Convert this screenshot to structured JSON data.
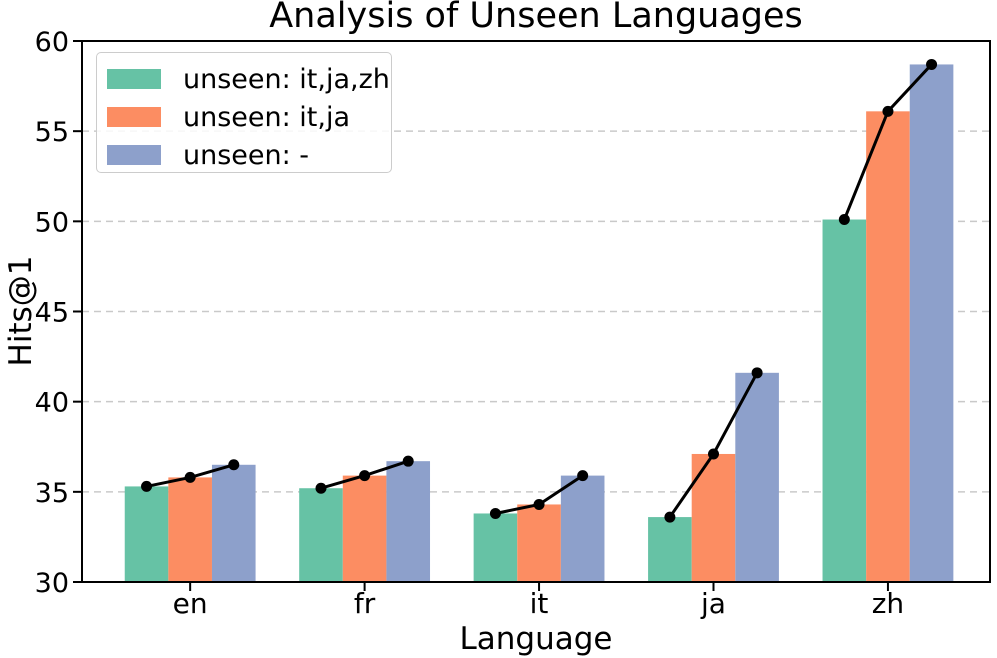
{
  "chart_data": {
    "type": "bar",
    "title": "Analysis of Unseen Languages",
    "xlabel": "Language",
    "ylabel": "Hits@1",
    "categories": [
      "en",
      "fr",
      "it",
      "ja",
      "zh"
    ],
    "series": [
      {
        "name": "unseen: it,ja,zh",
        "color": "#66c2a5",
        "values": [
          35.3,
          35.2,
          33.8,
          33.6,
          50.1
        ]
      },
      {
        "name": "unseen: it,ja",
        "color": "#fc8d62",
        "values": [
          35.8,
          35.9,
          34.3,
          37.1,
          56.1
        ]
      },
      {
        "name": "unseen: -",
        "color": "#8da0cb",
        "values": [
          36.5,
          36.7,
          35.9,
          41.6,
          58.7
        ]
      }
    ],
    "ylim": [
      30,
      60
    ],
    "yticks": [
      30,
      35,
      40,
      45,
      50,
      55,
      60
    ],
    "grid": true,
    "grid_color": "#c9c9c9",
    "spine_color": "#000000",
    "legend_position": "upper-left",
    "overlay_line": {
      "color": "#000000",
      "marker": "circle"
    }
  }
}
